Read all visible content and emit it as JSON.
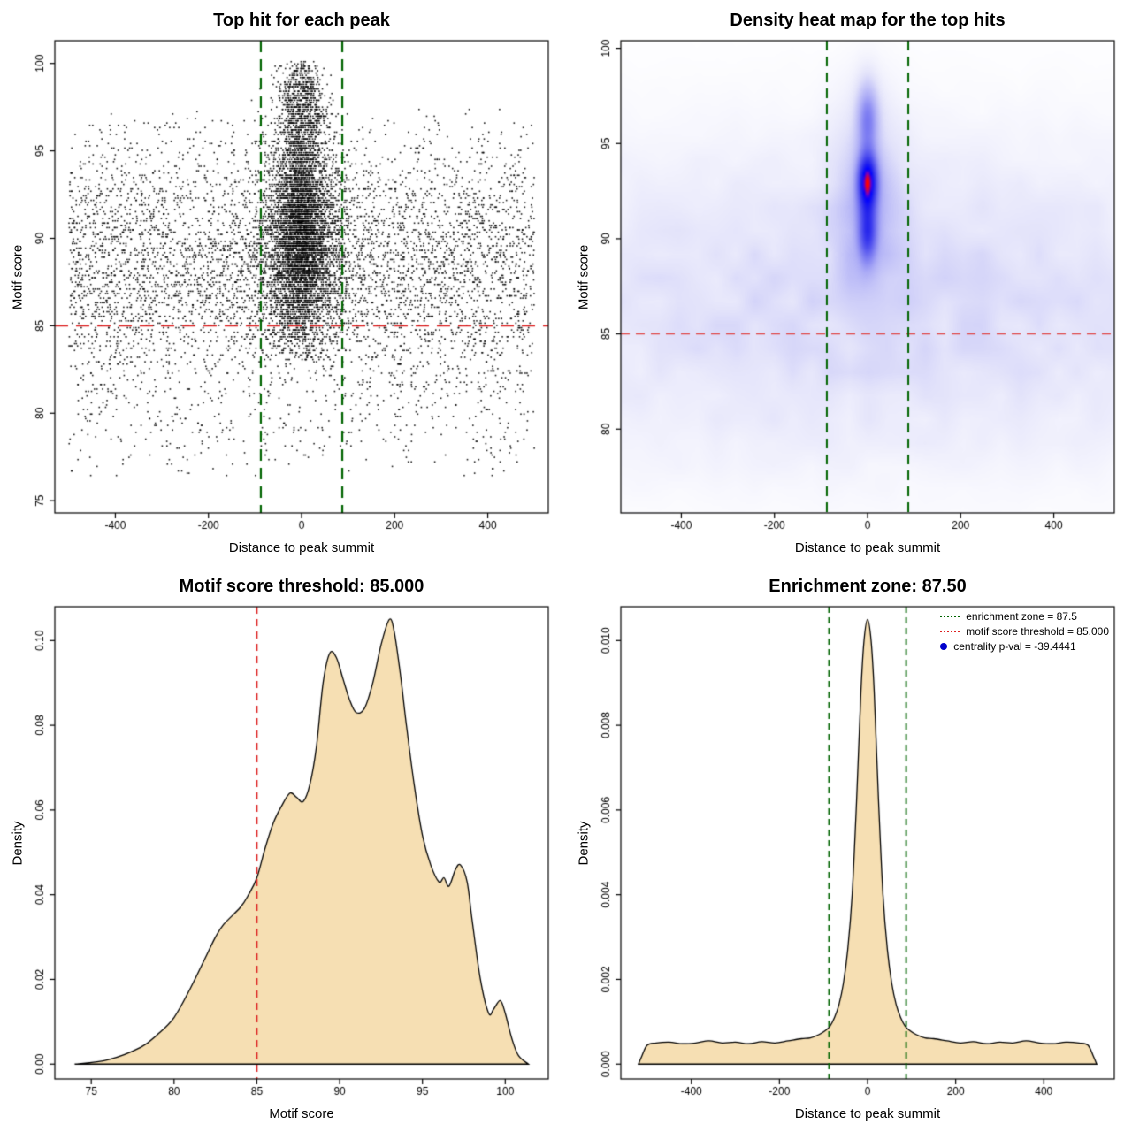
{
  "page": {
    "background": "#ffffff"
  },
  "colors": {
    "threshold_red": "#dd2222",
    "zone_green": "#006400",
    "density_fill": "#f6dfb3",
    "point_black": "#000000",
    "legend_dot_blue": "#0000cc"
  },
  "chart_data": [
    {
      "id": "top-hit-scatter",
      "type": "scatter",
      "title": "Top hit for each peak",
      "xlabel": "Distance to peak summit",
      "ylabel": "Motif score",
      "xlim": [
        -530,
        530
      ],
      "ylim": [
        74.3,
        101.3
      ],
      "x_ticks": [
        -400,
        -200,
        0,
        200,
        400
      ],
      "x_tick_labels": [
        "-400",
        "-200",
        "0",
        "200",
        "400"
      ],
      "y_ticks": [
        75,
        80,
        85,
        90,
        95,
        100
      ],
      "y_tick_labels": [
        "75",
        "80",
        "85",
        "90",
        "95",
        "100"
      ],
      "grid": false,
      "point_color": "#000000",
      "point_size": 1.6,
      "ref_lines": [
        {
          "orientation": "h",
          "value": 85,
          "color": "#dd2222",
          "dash": [
            15,
            9
          ],
          "width": 1.8
        },
        {
          "orientation": "v",
          "value": -87.5,
          "color": "#006400",
          "dash": [
            13,
            8
          ],
          "width": 2.2
        },
        {
          "orientation": "v",
          "value": 87.5,
          "color": "#006400",
          "dash": [
            13,
            8
          ],
          "width": 2.2
        }
      ],
      "generator": {
        "seed": 1337,
        "y_quantize": 0.13,
        "clusters": [
          {
            "n": 5200,
            "x": {
              "dist": "uniform",
              "min": -500,
              "max": 500
            },
            "y": {
              "dist": "normal",
              "mean": 88.5,
              "sd": 3.8,
              "clip": [
                77,
                97.4
              ]
            }
          },
          {
            "n": 320,
            "x": {
              "dist": "uniform",
              "min": -500,
              "max": 500
            },
            "y": {
              "dist": "normal",
              "mean": 79.2,
              "sd": 2.0,
              "clip": [
                76.4,
                83.2
              ]
            }
          },
          {
            "n": 4300,
            "x": {
              "dist": "normal",
              "mean": 0,
              "sd": 42,
              "clip": [
                -500,
                500
              ]
            },
            "y": {
              "dist": "normal",
              "mean": 90.0,
              "sd": 3.3,
              "clip": [
                83,
                99
              ]
            }
          },
          {
            "n": 1200,
            "x": {
              "dist": "normal",
              "mean": 0,
              "sd": 20,
              "clip": [
                -400,
                400
              ]
            },
            "y": {
              "dist": "normal",
              "mean": 90.5,
              "sd": 2.8,
              "clip": [
                84,
                97
              ]
            }
          },
          {
            "n": 800,
            "x": {
              "dist": "normal",
              "mean": 0,
              "sd": 25,
              "clip": [
                -300,
                300
              ]
            },
            "y": {
              "dist": "normal",
              "mean": 97.6,
              "sd": 1.7,
              "clip": [
                94.6,
                100.15
              ]
            }
          }
        ]
      }
    },
    {
      "id": "density-heatmap",
      "type": "heatmap",
      "title": "Density heat map for the top hits",
      "xlabel": "Distance to peak summit",
      "ylabel": "Motif score",
      "xlim": [
        -530,
        530
      ],
      "ylim": [
        75.6,
        100.4
      ],
      "x_ticks": [
        -400,
        -200,
        0,
        200,
        400
      ],
      "x_tick_labels": [
        "-400",
        "-200",
        "0",
        "200",
        "400"
      ],
      "y_ticks": [
        80,
        85,
        90,
        95,
        100
      ],
      "y_tick_labels": [
        "80",
        "85",
        "90",
        "95",
        "100"
      ],
      "grid": false,
      "ref_lines": [
        {
          "orientation": "h",
          "value": 85,
          "color": "#e04848",
          "dash": [
            10,
            7
          ],
          "width": 1.5
        },
        {
          "orientation": "v",
          "value": -87.5,
          "color": "#006400",
          "dash": [
            11,
            7
          ],
          "width": 2.0
        },
        {
          "orientation": "v",
          "value": 87.5,
          "color": "#006400",
          "dash": [
            11,
            7
          ],
          "width": 2.0
        }
      ],
      "heat": {
        "grid": [
          220,
          200
        ],
        "gamma": 0.6,
        "noise_seed": 99,
        "kernels": [
          {
            "w": 1.0,
            "x_mean": 0,
            "x_sd": 14,
            "y_mean": 93.0,
            "y_sd": 1.0
          },
          {
            "w": 0.55,
            "x_mean": 0,
            "x_sd": 13,
            "y_mean": 90.3,
            "y_sd": 1.1
          },
          {
            "w": 0.5,
            "x_mean": 0,
            "x_sd": 15,
            "y_mean": 96.3,
            "y_sd": 1.2
          },
          {
            "w": 2.0,
            "x_mean": 0,
            "x_sd": 45,
            "y_mean": 91.5,
            "y_sd": 3.0
          },
          {
            "w": 14.0,
            "x_mean": 0,
            "x_sd": 550,
            "y_mean": 87.5,
            "y_sd": 4.2,
            "noisy": true
          },
          {
            "w": 3.0,
            "x_mean": 0,
            "x_sd": 550,
            "y_mean": 82.0,
            "y_sd": 3.0,
            "noisy": true
          }
        ],
        "colormap": [
          {
            "t": 0.0,
            "c": [
              255,
              255,
              255
            ]
          },
          {
            "t": 0.18,
            "c": [
              226,
              226,
              250
            ]
          },
          {
            "t": 0.4,
            "c": [
              172,
              172,
              246
            ]
          },
          {
            "t": 0.6,
            "c": [
              104,
              104,
              240
            ]
          },
          {
            "t": 0.8,
            "c": [
              36,
              36,
              236
            ]
          },
          {
            "t": 0.9,
            "c": [
              0,
              0,
              255
            ]
          },
          {
            "t": 0.95,
            "c": [
              120,
              0,
              190
            ]
          },
          {
            "t": 1.0,
            "c": [
              255,
              0,
              0
            ]
          }
        ]
      }
    },
    {
      "id": "motif-score-density",
      "type": "density",
      "title": "Motif score threshold: 85.000",
      "xlabel": "Motif score",
      "ylabel": "Density",
      "xlim": [
        72.8,
        102.6
      ],
      "ylim": [
        -0.0035,
        0.108
      ],
      "x_ticks": [
        75,
        80,
        85,
        90,
        95,
        100
      ],
      "x_tick_labels": [
        "75",
        "80",
        "85",
        "90",
        "95",
        "100"
      ],
      "y_ticks": [
        0,
        0.02,
        0.04,
        0.06,
        0.08,
        0.1
      ],
      "y_tick_labels": [
        "0.00",
        "0.02",
        "0.04",
        "0.06",
        "0.08",
        "0.10"
      ],
      "grid": false,
      "fill": "#f6dfb3",
      "ref_lines": [
        {
          "orientation": "v",
          "value": 85,
          "color": "#dd2222",
          "dash": [
            8,
            6
          ],
          "width": 1.8
        }
      ],
      "points": {
        "x": [
          74,
          76,
          78,
          79,
          80,
          81,
          82,
          82.5,
          83,
          84,
          84.5,
          85,
          85.5,
          86,
          86.5,
          87,
          87.4,
          87.8,
          88.2,
          88.6,
          89,
          89.4,
          89.8,
          90.2,
          90.6,
          91,
          91.5,
          92,
          92.5,
          93,
          93.3,
          93.7,
          94,
          94.5,
          95,
          95.5,
          96,
          96.3,
          96.6,
          97,
          97.3,
          97.7,
          98,
          98.5,
          99,
          99.3,
          99.7,
          100,
          100.4,
          100.8,
          101.4
        ],
        "y": [
          0,
          0.001,
          0.004,
          0.007,
          0.011,
          0.018,
          0.026,
          0.03,
          0.033,
          0.037,
          0.04,
          0.044,
          0.051,
          0.057,
          0.061,
          0.064,
          0.063,
          0.062,
          0.066,
          0.075,
          0.09,
          0.097,
          0.096,
          0.091,
          0.086,
          0.083,
          0.084,
          0.09,
          0.099,
          0.105,
          0.102,
          0.091,
          0.081,
          0.066,
          0.054,
          0.047,
          0.043,
          0.044,
          0.042,
          0.046,
          0.047,
          0.043,
          0.034,
          0.02,
          0.012,
          0.013,
          0.015,
          0.012,
          0.006,
          0.002,
          0
        ]
      }
    },
    {
      "id": "distance-density",
      "type": "density",
      "title": "Enrichment zone: 87.50",
      "xlabel": "Distance to peak summit",
      "ylabel": "Density",
      "xlim": [
        -560,
        560
      ],
      "ylim": [
        -0.00035,
        0.0108
      ],
      "x_ticks": [
        -400,
        -200,
        0,
        200,
        400
      ],
      "x_tick_labels": [
        "-400",
        "-200",
        "0",
        "200",
        "400"
      ],
      "y_ticks": [
        0,
        0.002,
        0.004,
        0.006,
        0.008,
        0.01
      ],
      "y_tick_labels": [
        "0.000",
        "0.002",
        "0.004",
        "0.006",
        "0.008",
        "0.010"
      ],
      "grid": false,
      "fill": "#f6dfb3",
      "ref_lines": [
        {
          "orientation": "v",
          "value": -87.5,
          "color": "#006400",
          "dash": [
            7,
            5
          ],
          "width": 1.8
        },
        {
          "orientation": "v",
          "value": 87.5,
          "color": "#006400",
          "dash": [
            7,
            5
          ],
          "width": 1.8
        }
      ],
      "legend": [
        {
          "marker": "line",
          "color": "#006400",
          "label": "enrichment zone = 87.5"
        },
        {
          "marker": "line",
          "color": "#dd2222",
          "label": "motif score threshold = 85.000"
        },
        {
          "marker": "dot",
          "color": "#0000cc",
          "label": "centrality p-val = -39.4441"
        }
      ],
      "points": {
        "x": [
          -520,
          -512,
          -500,
          -480,
          -450,
          -420,
          -390,
          -360,
          -330,
          -300,
          -270,
          -240,
          -210,
          -180,
          -150,
          -130,
          -110,
          -95,
          -85,
          -75,
          -65,
          -55,
          -45,
          -35,
          -25,
          -15,
          -8,
          0,
          8,
          15,
          25,
          35,
          45,
          55,
          65,
          75,
          85,
          95,
          110,
          130,
          150,
          180,
          210,
          240,
          270,
          300,
          330,
          360,
          390,
          420,
          450,
          480,
          500,
          512,
          520
        ],
        "y": [
          0,
          0.0002,
          0.00045,
          0.0005,
          0.00052,
          0.00048,
          0.0005,
          0.00055,
          0.0005,
          0.00052,
          0.00048,
          0.00053,
          0.0005,
          0.00055,
          0.0006,
          0.00062,
          0.0007,
          0.0008,
          0.0009,
          0.0011,
          0.0014,
          0.0019,
          0.0027,
          0.004,
          0.0062,
          0.0088,
          0.01,
          0.0105,
          0.01,
          0.0088,
          0.0062,
          0.004,
          0.0027,
          0.0019,
          0.0014,
          0.0011,
          0.0009,
          0.0008,
          0.0007,
          0.00062,
          0.0006,
          0.00055,
          0.0005,
          0.00053,
          0.00048,
          0.00052,
          0.0005,
          0.00055,
          0.0005,
          0.00048,
          0.00052,
          0.0005,
          0.00045,
          0.0002,
          0
        ]
      }
    }
  ]
}
